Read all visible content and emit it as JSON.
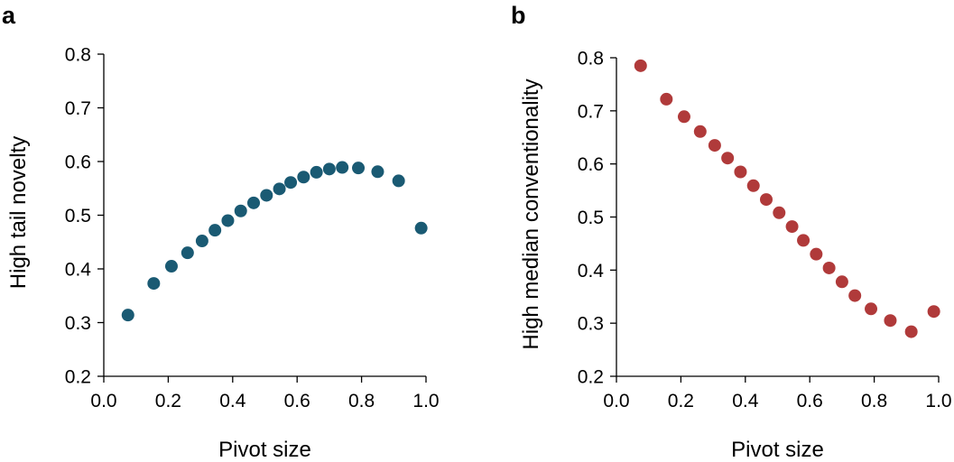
{
  "chart_data": [
    {
      "panel_label": "a",
      "type": "scatter",
      "xlabel": "Pivot size",
      "ylabel": "High tail novelty",
      "xlim": [
        0.0,
        1.0
      ],
      "ylim": [
        0.2,
        0.8
      ],
      "xticks": [
        "0.0",
        "0.2",
        "0.4",
        "0.6",
        "0.8",
        "1.0"
      ],
      "yticks": [
        "0.2",
        "0.3",
        "0.4",
        "0.5",
        "0.6",
        "0.7",
        "0.8"
      ],
      "grid": false,
      "marker_color": "#1a5a73",
      "points": {
        "x": [
          0.075,
          0.155,
          0.21,
          0.26,
          0.305,
          0.345,
          0.385,
          0.425,
          0.465,
          0.505,
          0.545,
          0.58,
          0.62,
          0.66,
          0.7,
          0.74,
          0.79,
          0.85,
          0.915,
          0.985
        ],
        "y": [
          0.314,
          0.373,
          0.405,
          0.43,
          0.452,
          0.472,
          0.49,
          0.508,
          0.523,
          0.537,
          0.549,
          0.561,
          0.571,
          0.58,
          0.586,
          0.589,
          0.588,
          0.581,
          0.564,
          0.476
        ]
      }
    },
    {
      "panel_label": "b",
      "type": "scatter",
      "xlabel": "Pivot size",
      "ylabel": "High median conventionality",
      "xlim": [
        0.0,
        1.0
      ],
      "ylim": [
        0.2,
        0.8
      ],
      "xticks": [
        "0.0",
        "0.2",
        "0.4",
        "0.6",
        "0.8",
        "1.0"
      ],
      "yticks": [
        "0.2",
        "0.3",
        "0.4",
        "0.5",
        "0.6",
        "0.7",
        "0.8"
      ],
      "grid": false,
      "marker_color": "#b03a3a",
      "points": {
        "x": [
          0.075,
          0.155,
          0.21,
          0.26,
          0.305,
          0.345,
          0.385,
          0.425,
          0.465,
          0.505,
          0.545,
          0.58,
          0.62,
          0.66,
          0.7,
          0.74,
          0.79,
          0.85,
          0.915,
          0.985
        ],
        "y": [
          0.785,
          0.722,
          0.689,
          0.661,
          0.635,
          0.611,
          0.585,
          0.559,
          0.533,
          0.508,
          0.482,
          0.456,
          0.43,
          0.404,
          0.378,
          0.352,
          0.327,
          0.305,
          0.284,
          0.322
        ]
      }
    }
  ]
}
